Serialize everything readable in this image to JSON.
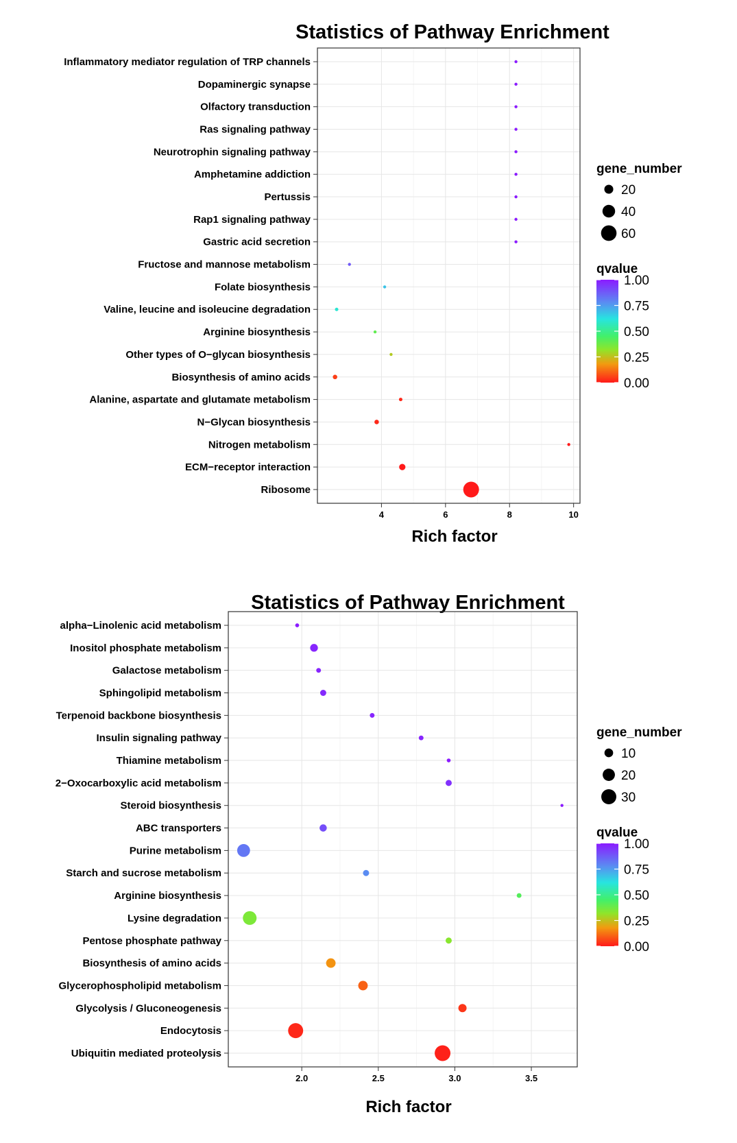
{
  "chart_data": [
    {
      "type": "scatter",
      "title": "Statistics of Pathway Enrichment",
      "xlabel": "Rich factor",
      "ylabel": "",
      "xlim": [
        2.0,
        10.2
      ],
      "xticks": [
        4,
        6,
        8,
        10
      ],
      "xtick_labels": [
        "4",
        "6",
        "8",
        "10"
      ],
      "grid": true,
      "size_legend": {
        "title": "gene_number",
        "values": [
          20,
          40,
          60
        ],
        "labels": [
          "20",
          "40",
          "60"
        ]
      },
      "color_legend": {
        "title": "qvalue",
        "range": [
          0,
          1
        ],
        "ticks": [
          1.0,
          0.75,
          0.5,
          0.25,
          0.0
        ],
        "labels": [
          "1.00",
          "0.75",
          "0.50",
          "0.25",
          "0.00"
        ]
      },
      "categories": [
        "Inflammatory mediator regulation of TRP channels",
        "Dopaminergic synapse",
        "Olfactory transduction",
        "Ras signaling pathway",
        "Neurotrophin signaling pathway",
        "Amphetamine addiction",
        "Pertussis",
        "Rap1 signaling pathway",
        "Gastric acid secretion",
        "Fructose and mannose metabolism",
        "Folate biosynthesis",
        "Valine, leucine and isoleucine degradation",
        "Arginine biosynthesis",
        "Other types of O−glycan biosynthesis",
        "Biosynthesis of amino acids",
        "Alanine, aspartate and glutamate metabolism",
        "N−Glycan biosynthesis",
        "Nitrogen metabolism",
        "ECM−receptor interaction",
        "Ribosome"
      ],
      "points": [
        {
          "pathway": "Inflammatory mediator regulation of TRP channels",
          "rich_factor": 8.2,
          "gene_number": 1,
          "qvalue": 1.0
        },
        {
          "pathway": "Dopaminergic synapse",
          "rich_factor": 8.2,
          "gene_number": 1,
          "qvalue": 1.0
        },
        {
          "pathway": "Olfactory transduction",
          "rich_factor": 8.2,
          "gene_number": 1,
          "qvalue": 1.0
        },
        {
          "pathway": "Ras signaling pathway",
          "rich_factor": 8.2,
          "gene_number": 1,
          "qvalue": 1.0
        },
        {
          "pathway": "Neurotrophin signaling pathway",
          "rich_factor": 8.2,
          "gene_number": 1,
          "qvalue": 1.0
        },
        {
          "pathway": "Amphetamine addiction",
          "rich_factor": 8.2,
          "gene_number": 1,
          "qvalue": 1.0
        },
        {
          "pathway": "Pertussis",
          "rich_factor": 8.2,
          "gene_number": 1,
          "qvalue": 1.0
        },
        {
          "pathway": "Rap1 signaling pathway",
          "rich_factor": 8.2,
          "gene_number": 1,
          "qvalue": 1.0
        },
        {
          "pathway": "Gastric acid secretion",
          "rich_factor": 8.2,
          "gene_number": 1,
          "qvalue": 1.0
        },
        {
          "pathway": "Fructose and mannose metabolism",
          "rich_factor": 3.0,
          "gene_number": 2,
          "qvalue": 0.88
        },
        {
          "pathway": "Folate biosynthesis",
          "rich_factor": 4.1,
          "gene_number": 2,
          "qvalue": 0.68
        },
        {
          "pathway": "Valine, leucine and isoleucine degradation",
          "rich_factor": 2.6,
          "gene_number": 3,
          "qvalue": 0.6
        },
        {
          "pathway": "Arginine biosynthesis",
          "rich_factor": 3.8,
          "gene_number": 2,
          "qvalue": 0.4
        },
        {
          "pathway": "Other types of O−glycan biosynthesis",
          "rich_factor": 4.3,
          "gene_number": 2,
          "qvalue": 0.27
        },
        {
          "pathway": "Biosynthesis of amino acids",
          "rich_factor": 2.55,
          "gene_number": 5,
          "qvalue": 0.05
        },
        {
          "pathway": "Alanine, aspartate and glutamate metabolism",
          "rich_factor": 4.6,
          "gene_number": 3,
          "qvalue": 0.02
        },
        {
          "pathway": "N−Glycan biosynthesis",
          "rich_factor": 3.85,
          "gene_number": 5,
          "qvalue": 0.02
        },
        {
          "pathway": "Nitrogen metabolism",
          "rich_factor": 9.85,
          "gene_number": 2,
          "qvalue": 0.0
        },
        {
          "pathway": "ECM−receptor interaction",
          "rich_factor": 4.65,
          "gene_number": 10,
          "qvalue": 0.0
        },
        {
          "pathway": "Ribosome",
          "rich_factor": 6.8,
          "gene_number": 62,
          "qvalue": 0.0
        }
      ]
    },
    {
      "type": "scatter",
      "title": "Statistics of Pathway Enrichment",
      "xlabel": "Rich factor",
      "ylabel": "",
      "xlim": [
        1.52,
        3.8
      ],
      "xticks": [
        2.0,
        2.5,
        3.0,
        3.5
      ],
      "xtick_labels": [
        "2.0",
        "2.5",
        "3.0",
        "3.5"
      ],
      "grid": true,
      "size_legend": {
        "title": "gene_number",
        "values": [
          10,
          20,
          30
        ],
        "labels": [
          "10",
          "20",
          "30"
        ]
      },
      "color_legend": {
        "title": "qvalue",
        "range": [
          0,
          1
        ],
        "ticks": [
          1.0,
          0.75,
          0.5,
          0.25,
          0.0
        ],
        "labels": [
          "1.00",
          "0.75",
          "0.50",
          "0.25",
          "0.00"
        ]
      },
      "categories": [
        "alpha−Linolenic acid metabolism",
        "Inositol phosphate metabolism",
        "Galactose metabolism",
        "Sphingolipid metabolism",
        "Terpenoid backbone biosynthesis",
        "Insulin signaling pathway",
        "Thiamine metabolism",
        "2−Oxocarboxylic acid metabolism",
        "Steroid biosynthesis",
        "ABC transporters",
        "Purine metabolism",
        "Starch and sucrose metabolism",
        "Arginine biosynthesis",
        "Lysine degradation",
        "Pentose phosphate pathway",
        "Biosynthesis of amino acids",
        "Glycerophospholipid metabolism",
        "Glycolysis / Gluconeogenesis",
        "Endocytosis",
        "Ubiquitin mediated proteolysis"
      ],
      "points": [
        {
          "pathway": "alpha−Linolenic acid metabolism",
          "rich_factor": 1.97,
          "gene_number": 2,
          "qvalue": 1.0
        },
        {
          "pathway": "Inositol phosphate metabolism",
          "rich_factor": 2.08,
          "gene_number": 8,
          "qvalue": 0.98
        },
        {
          "pathway": "Galactose metabolism",
          "rich_factor": 2.11,
          "gene_number": 3,
          "qvalue": 0.98
        },
        {
          "pathway": "Sphingolipid metabolism",
          "rich_factor": 2.14,
          "gene_number": 5,
          "qvalue": 0.97
        },
        {
          "pathway": "Terpenoid backbone biosynthesis",
          "rich_factor": 2.46,
          "gene_number": 3,
          "qvalue": 0.98
        },
        {
          "pathway": "Insulin signaling pathway",
          "rich_factor": 2.78,
          "gene_number": 3,
          "qvalue": 0.98
        },
        {
          "pathway": "Thiamine metabolism",
          "rich_factor": 2.96,
          "gene_number": 2,
          "qvalue": 1.0
        },
        {
          "pathway": "2−Oxocarboxylic acid metabolism",
          "rich_factor": 2.96,
          "gene_number": 5,
          "qvalue": 0.96
        },
        {
          "pathway": "Steroid biosynthesis",
          "rich_factor": 3.7,
          "gene_number": 1,
          "qvalue": 1.0
        },
        {
          "pathway": "ABC transporters",
          "rich_factor": 2.14,
          "gene_number": 7,
          "qvalue": 0.9
        },
        {
          "pathway": "Purine metabolism",
          "rich_factor": 1.62,
          "gene_number": 22,
          "qvalue": 0.82
        },
        {
          "pathway": "Starch and sucrose metabolism",
          "rich_factor": 2.42,
          "gene_number": 5,
          "qvalue": 0.78
        },
        {
          "pathway": "Arginine biosynthesis",
          "rich_factor": 3.42,
          "gene_number": 3,
          "qvalue": 0.42
        },
        {
          "pathway": "Lysine degradation",
          "rich_factor": 1.66,
          "gene_number": 25,
          "qvalue": 0.35
        },
        {
          "pathway": "Pentose phosphate pathway",
          "rich_factor": 2.96,
          "gene_number": 5,
          "qvalue": 0.33
        },
        {
          "pathway": "Biosynthesis of amino acids",
          "rich_factor": 2.19,
          "gene_number": 12,
          "qvalue": 0.17
        },
        {
          "pathway": "Glycerophospholipid metabolism",
          "rich_factor": 2.4,
          "gene_number": 12,
          "qvalue": 0.1
        },
        {
          "pathway": "Glycolysis / Gluconeogenesis",
          "rich_factor": 3.05,
          "gene_number": 9,
          "qvalue": 0.04
        },
        {
          "pathway": "Endocytosis",
          "rich_factor": 1.96,
          "gene_number": 30,
          "qvalue": 0.02
        },
        {
          "pathway": "Ubiquitin mediated proteolysis",
          "rich_factor": 2.92,
          "gene_number": 33,
          "qvalue": 0.01
        }
      ]
    }
  ]
}
